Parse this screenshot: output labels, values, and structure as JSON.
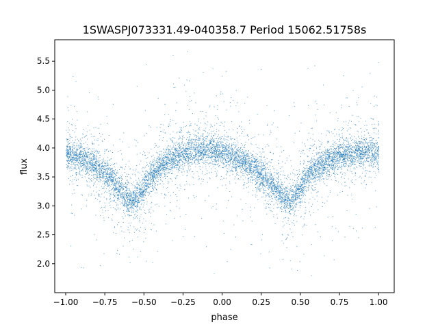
{
  "chart_data": {
    "type": "scatter",
    "title": "1SWASPJ073331.49-040358.7 Period 15062.51758s",
    "xlabel": "phase",
    "ylabel": "flux",
    "xlim": [
      -1.07,
      1.1
    ],
    "ylim": [
      1.5,
      5.87
    ],
    "xticks": [
      -1.0,
      -0.75,
      -0.5,
      -0.25,
      0.0,
      0.25,
      0.5,
      0.75,
      1.0
    ],
    "xtick_labels": [
      "−1.00",
      "−0.75",
      "−0.50",
      "−0.25",
      "0.00",
      "0.25",
      "0.50",
      "0.75",
      "1.00"
    ],
    "yticks": [
      2.0,
      2.5,
      3.0,
      3.5,
      4.0,
      4.5,
      5.0,
      5.5
    ],
    "ytick_labels": [
      "2.0",
      "2.5",
      "3.0",
      "3.5",
      "4.0",
      "4.5",
      "5.0",
      "5.5"
    ],
    "grid": false,
    "marker_color": "#1f77b4",
    "series": [
      {
        "x": [
          -1.0,
          -0.95,
          -0.9,
          -0.85,
          -0.8,
          -0.75,
          -0.7,
          -0.65,
          -0.6,
          -0.575,
          -0.55,
          -0.5,
          -0.45,
          -0.4,
          -0.35,
          -0.3,
          -0.25,
          -0.2,
          -0.15,
          -0.1,
          -0.05,
          0.0,
          0.05,
          0.1,
          0.15,
          0.2,
          0.25,
          0.3,
          0.35,
          0.4,
          0.425,
          0.45,
          0.5,
          0.55,
          0.6,
          0.65,
          0.7,
          0.75,
          0.8,
          0.85,
          0.9,
          0.95,
          1.0
        ],
        "y": [
          3.9,
          3.86,
          3.82,
          3.76,
          3.68,
          3.57,
          3.43,
          3.27,
          3.13,
          3.08,
          3.12,
          3.32,
          3.52,
          3.67,
          3.77,
          3.84,
          3.9,
          3.94,
          3.96,
          3.97,
          3.96,
          3.93,
          3.88,
          3.82,
          3.75,
          3.66,
          3.55,
          3.42,
          3.27,
          3.13,
          3.08,
          3.12,
          3.32,
          3.52,
          3.66,
          3.76,
          3.83,
          3.88,
          3.91,
          3.93,
          3.94,
          3.93,
          3.91
        ]
      }
    ]
  }
}
